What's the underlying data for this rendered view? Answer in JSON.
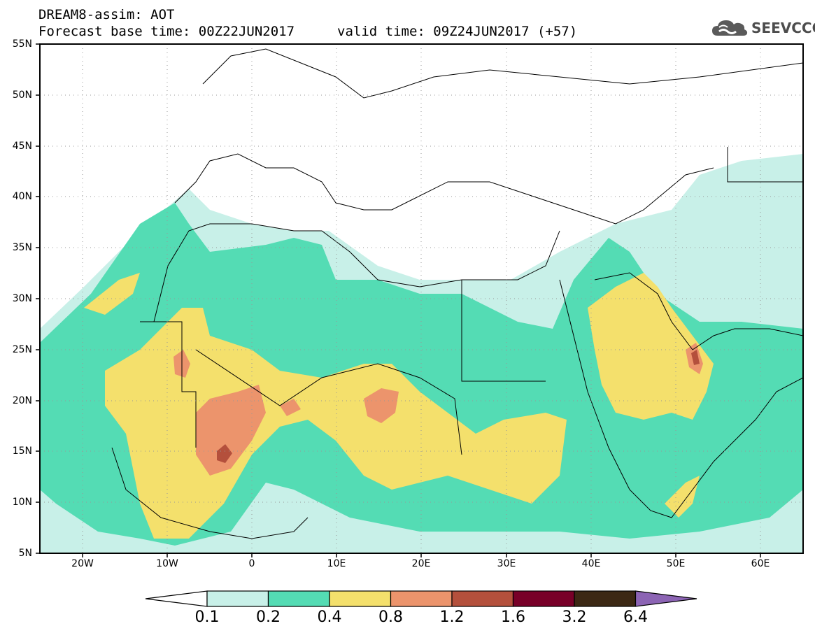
{
  "title": {
    "line1": "DREAM8-assim: AOT",
    "line2": "Forecast base time: 00Z22JUN2017",
    "valid": "valid time: 09Z24JUN2017 (+57)"
  },
  "logo": {
    "text": "SEEVCCC",
    "icon": "cloud-icon"
  },
  "map": {
    "lon_range": [
      -25,
      65
    ],
    "lat_range": [
      5,
      55
    ],
    "lat_ticks": [
      "55N",
      "50N",
      "45N",
      "40N",
      "35N",
      "30N",
      "25N",
      "20N",
      "15N",
      "10N",
      "5N"
    ],
    "lon_ticks": [
      "20W",
      "10W",
      "0",
      "10E",
      "20E",
      "30E",
      "40E",
      "50E",
      "60E"
    ],
    "grid": "dotted"
  },
  "colorbar": {
    "labels": [
      "0.1",
      "0.2",
      "0.4",
      "0.8",
      "1.2",
      "1.6",
      "3.2",
      "6.4"
    ],
    "colors": [
      "#c8f0e8",
      "#54dcb4",
      "#f4e06c",
      "#ec946c",
      "#b4503c",
      "#780028",
      "#3c2814",
      "#8c64b4"
    ],
    "below_color": "#ffffff"
  }
}
